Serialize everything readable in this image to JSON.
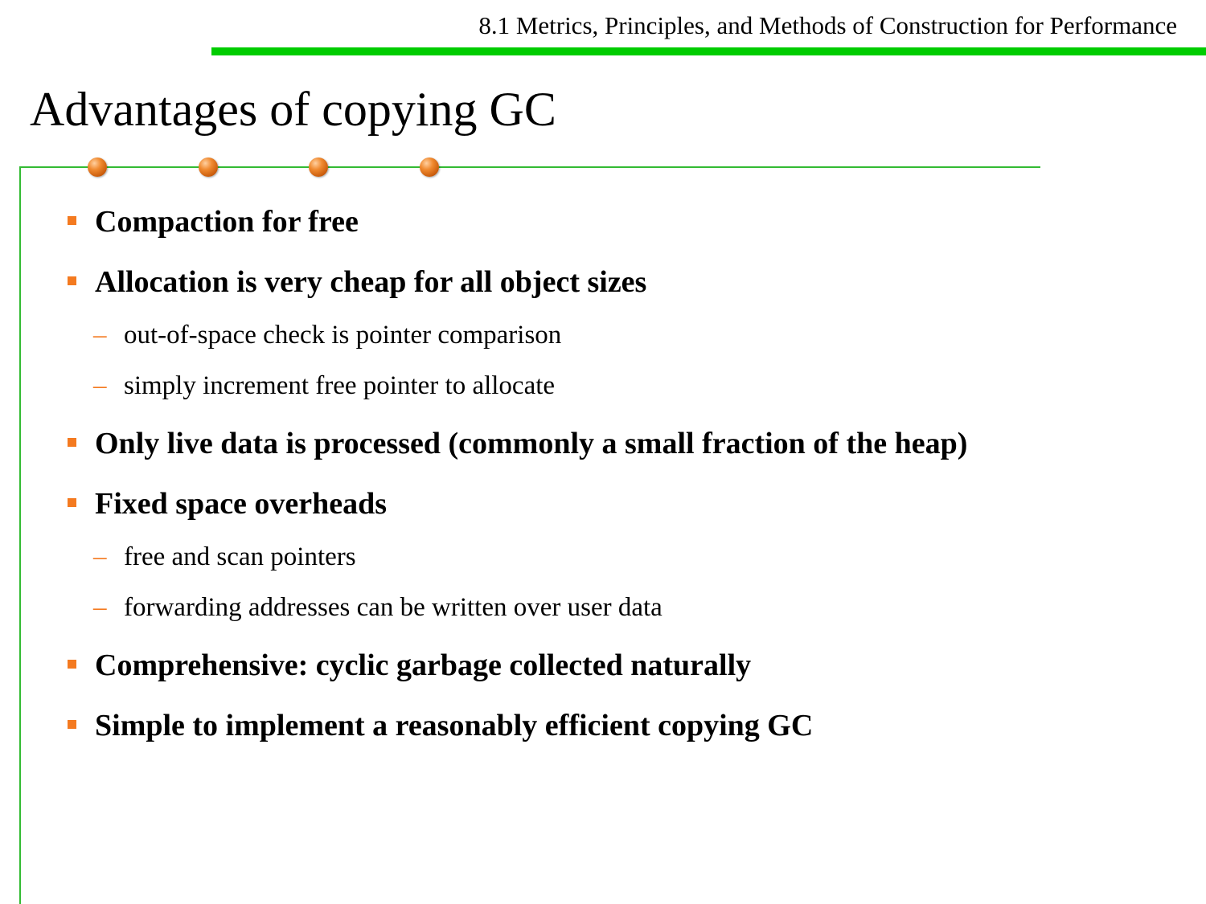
{
  "header": {
    "section_title": "8.1 Metrics, Principles, and Methods of Construction for Performance"
  },
  "slide": {
    "title": "Advantages of copying GC",
    "bullets": [
      {
        "text": "Compaction for free"
      },
      {
        "text": "Allocation is very cheap for all object sizes",
        "sub": [
          "out-of-space check is pointer comparison",
          "simply increment free pointer to allocate"
        ]
      },
      {
        "text": "Only live data is processed (commonly a small fraction of the heap)"
      },
      {
        "text": "Fixed space overheads",
        "sub": [
          "free and scan pointers",
          "forwarding addresses can be written over user data"
        ]
      },
      {
        "text": "Comprehensive: cyclic garbage collected naturally"
      },
      {
        "text": "Simple to implement a reasonably efficient copying GC"
      }
    ]
  },
  "colors": {
    "header_bar": "#00cc00",
    "rule": "#33bb33",
    "bullet": "#f47a20"
  },
  "icons": {
    "bullet": "square-bullet-icon",
    "sub_bullet": "dash-bullet-icon",
    "decor": "orange-orb-icon"
  }
}
